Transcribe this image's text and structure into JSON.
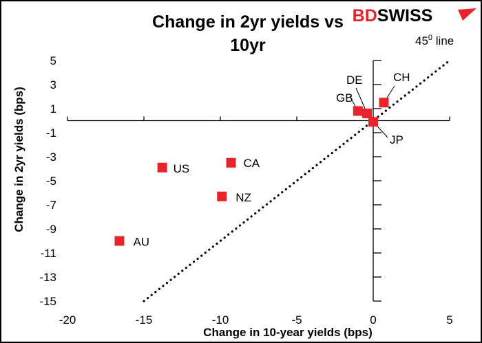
{
  "brand": {
    "logo_text_red": "BD",
    "logo_text_black": "SWISS",
    "logo_color": "#e8232a"
  },
  "chart_data": {
    "type": "scatter",
    "title": "Change in 2yr yields vs 10yr",
    "title_lines": [
      "Change in 2yr yields vs",
      "10yr"
    ],
    "xlabel": "Change in 10-year yields (bps)",
    "ylabel": "Change in 2yr yields (bps)",
    "xlim": [
      -20,
      5
    ],
    "ylim": [
      -15,
      5
    ],
    "xticks": [
      -20,
      -15,
      -10,
      -5,
      0,
      5
    ],
    "yticks": [
      5,
      3,
      1,
      -1,
      -3,
      -5,
      -7,
      -9,
      -11,
      -13,
      -15
    ],
    "grid": false,
    "marker_color": "#e8232a",
    "points": [
      {
        "label": "US",
        "x": -13.8,
        "y": -3.9
      },
      {
        "label": "CA",
        "x": -9.3,
        "y": -3.5
      },
      {
        "label": "NZ",
        "x": -9.9,
        "y": -6.3
      },
      {
        "label": "AU",
        "x": -16.6,
        "y": -10.0
      },
      {
        "label": "CH",
        "x": 0.7,
        "y": 1.5
      },
      {
        "label": "GB",
        "x": -1.0,
        "y": 0.8
      },
      {
        "label": "DE",
        "x": -0.4,
        "y": 0.6
      },
      {
        "label": "JP",
        "x": 0.0,
        "y": -0.1
      }
    ],
    "reference_line": {
      "label_base": "45",
      "label_sup": "0",
      "label_rest": " line",
      "from": [
        -15,
        -15
      ],
      "to": [
        5,
        5
      ],
      "style": "dotted"
    }
  }
}
